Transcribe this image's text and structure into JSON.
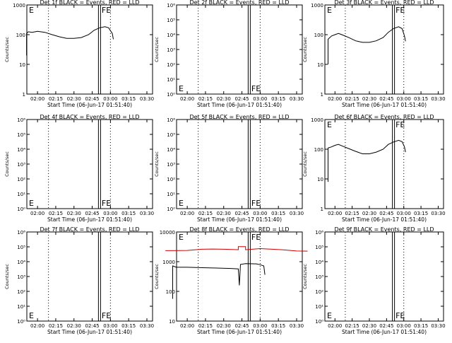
{
  "window": {
    "background": "#ffffff",
    "frame_color": "#000000",
    "event_color": "#000000",
    "lld_color": "#cc0000"
  },
  "panels_common": {
    "xlabel": "Start Time (06-Jun-17 01:51:40)",
    "ylabel": "Counts/sec",
    "xticks": [
      "02:00",
      "02:15",
      "02:30",
      "02:45",
      "03:00",
      "03:15",
      "03:30"
    ],
    "marker_E": "E",
    "marker_FE": "FE"
  },
  "chart_data": [
    {
      "type": "line",
      "title": "Det 1f BLACK = Events, RED = LLD",
      "xlabel": "Start Time (06-Jun-17 01:51:40)",
      "ylabel": "Counts/sec",
      "x_range_minutes": [
        -6,
        33
      ],
      "x_unit": "minutes after 02:00",
      "yscale": "log",
      "ylim": [
        1,
        1000
      ],
      "yticks": [
        "1000",
        "100",
        "10",
        "1"
      ],
      "dotted_x": [
        3,
        20
      ],
      "double_x": [
        17
      ],
      "labels": [
        {
          "text": "E",
          "pos": "top-left"
        },
        {
          "text": "FE",
          "pos": "top-right-of-double"
        }
      ],
      "series": [
        {
          "color": "black",
          "points": [
            [
              -3,
              20
            ],
            [
              -3,
              110
            ],
            [
              -2.5,
              125
            ],
            [
              -1.5,
              120
            ],
            [
              0,
              130
            ],
            [
              2,
              120
            ],
            [
              4,
              100
            ],
            [
              6,
              85
            ],
            [
              8,
              75
            ],
            [
              10,
              75
            ],
            [
              12,
              80
            ],
            [
              14,
              100
            ],
            [
              15.5,
              140
            ],
            [
              17,
              170
            ],
            [
              18.5,
              185
            ],
            [
              19.5,
              170
            ],
            [
              20.5,
              110
            ],
            [
              20.8,
              70
            ]
          ]
        }
      ]
    },
    {
      "type": "line",
      "title": "Det 2f BLACK = Events, RED = LLD",
      "xlabel": "Start Time (06-Jun-17 01:51:40)",
      "ylabel": "Counts/sec",
      "x_range_minutes": [
        -6,
        33
      ],
      "yscale": "log",
      "ylim": [
        1,
        1000000
      ],
      "yticks": [
        "10⁶",
        "10⁵",
        "10⁴",
        "10³",
        "10²",
        "10¹",
        "10⁰"
      ],
      "dotted_x": [
        3,
        20
      ],
      "double_x": [
        17
      ],
      "labels": [
        {
          "text": "E",
          "pos": "bottom-left"
        },
        {
          "text": "FE",
          "pos": "bottom-right-of-double"
        }
      ],
      "series": []
    },
    {
      "type": "line",
      "title": "Det 3f BLACK = Events, RED = LLD",
      "xlabel": "Start Time (06-Jun-17 01:51:40)",
      "ylabel": "Counts/sec",
      "x_range_minutes": [
        -6,
        33
      ],
      "yscale": "log",
      "ylim": [
        1,
        1000
      ],
      "yticks": [
        "1000",
        "100",
        "10",
        "1"
      ],
      "dotted_x": [
        3,
        20
      ],
      "double_x": [
        17
      ],
      "labels": [
        {
          "text": "E",
          "pos": "top-left"
        },
        {
          "text": "FE",
          "pos": "top-right-of-double"
        }
      ],
      "series": [
        {
          "color": "black",
          "points": [
            [
              -2,
              10
            ],
            [
              -2,
              70
            ],
            [
              -1,
              90
            ],
            [
              0,
              100
            ],
            [
              1,
              110
            ],
            [
              2,
              100
            ],
            [
              4,
              80
            ],
            [
              6,
              62
            ],
            [
              8,
              55
            ],
            [
              10,
              55
            ],
            [
              12,
              62
            ],
            [
              14,
              80
            ],
            [
              15.5,
              120
            ],
            [
              17,
              160
            ],
            [
              18.5,
              185
            ],
            [
              19.5,
              160
            ],
            [
              20.2,
              90
            ],
            [
              20.5,
              60
            ]
          ]
        }
      ]
    },
    {
      "type": "line",
      "title": "Det 4f BLACK = Events, RED = LLD",
      "xlabel": "Start Time (06-Jun-17 01:51:40)",
      "ylabel": "Counts/sec",
      "x_range_minutes": [
        -6,
        33
      ],
      "yscale": "log",
      "ylim": [
        1,
        1000000
      ],
      "yticks": [
        "10⁶",
        "10⁵",
        "10⁴",
        "10³",
        "10²",
        "10¹",
        "10⁰"
      ],
      "dotted_x": [
        3,
        20
      ],
      "double_x": [
        17
      ],
      "labels": [
        {
          "text": "E",
          "pos": "bottom-left"
        },
        {
          "text": "FE",
          "pos": "bottom-right-of-double"
        }
      ],
      "series": []
    },
    {
      "type": "line",
      "title": "Det 5f BLACK = Events, RED = LLD",
      "xlabel": "Start Time (06-Jun-17 01:51:40)",
      "ylabel": "Counts/sec",
      "x_range_minutes": [
        -6,
        33
      ],
      "yscale": "log",
      "ylim": [
        1,
        1000000
      ],
      "yticks": [
        "10⁶",
        "10⁵",
        "10⁴",
        "10³",
        "10²",
        "10¹",
        "10⁰"
      ],
      "dotted_x": [
        3,
        20
      ],
      "double_x": [
        17
      ],
      "labels": [
        {
          "text": "E",
          "pos": "bottom-left"
        },
        {
          "text": "FE",
          "pos": "bottom-right-of-double"
        }
      ],
      "series": []
    },
    {
      "type": "line",
      "title": "Det 6f BLACK = Events, RED = LLD",
      "xlabel": "Start Time (06-Jun-17 01:51:40)",
      "ylabel": "Counts/sec",
      "x_range_minutes": [
        -6,
        33
      ],
      "yscale": "log",
      "ylim": [
        1,
        1000
      ],
      "yticks": [
        "1000",
        "100",
        "10",
        "1"
      ],
      "dotted_x": [
        3,
        20
      ],
      "double_x": [
        17
      ],
      "labels": [
        {
          "text": "E",
          "pos": "top-left"
        },
        {
          "text": "FE",
          "pos": "top-right-of-double"
        }
      ],
      "series": [
        {
          "color": "black",
          "points": [
            [
              -2,
              8
            ],
            [
              -2,
              110
            ],
            [
              -1,
              120
            ],
            [
              0,
              135
            ],
            [
              1,
              145
            ],
            [
              2,
              130
            ],
            [
              4,
              105
            ],
            [
              6,
              85
            ],
            [
              8,
              70
            ],
            [
              10,
              70
            ],
            [
              12,
              80
            ],
            [
              14,
              100
            ],
            [
              15.5,
              145
            ],
            [
              17,
              175
            ],
            [
              18.5,
              200
            ],
            [
              19.5,
              180
            ],
            [
              20.2,
              120
            ],
            [
              20.5,
              80
            ]
          ]
        }
      ]
    },
    {
      "type": "line",
      "title": "Det 7f BLACK = Events, RED = LLD",
      "xlabel": "Start Time (06-Jun-17 01:51:40)",
      "ylabel": "Counts/sec",
      "x_range_minutes": [
        -6,
        33
      ],
      "yscale": "log",
      "ylim": [
        1,
        1000000
      ],
      "yticks": [
        "10⁶",
        "10⁵",
        "10⁴",
        "10³",
        "10²",
        "10¹",
        "10⁰"
      ],
      "dotted_x": [
        3,
        20
      ],
      "double_x": [
        17
      ],
      "labels": [
        {
          "text": "E",
          "pos": "bottom-left"
        },
        {
          "text": "FE",
          "pos": "bottom-right-of-double"
        }
      ],
      "series": []
    },
    {
      "type": "line",
      "title": "Det 8f BLACK = Events, RED = LLD",
      "xlabel": "Start Time (06-Jun-17 01:51:40)",
      "ylabel": "Counts/sec",
      "x_range_minutes": [
        -6,
        33
      ],
      "yscale": "log",
      "ylim": [
        1,
        10000
      ],
      "yticks": [
        "10000",
        "1000",
        "100",
        "10"
      ],
      "dotted_x": [
        3,
        20
      ],
      "double_x": [
        17
      ],
      "labels": [
        {
          "text": "E",
          "pos": "top-left"
        },
        {
          "text": "FE",
          "pos": "top-right-of-double"
        }
      ],
      "series": [
        {
          "color": "red",
          "points": [
            [
              -6,
              1450
            ],
            [
              0,
              1480
            ],
            [
              4,
              1680
            ],
            [
              7,
              1720
            ],
            [
              10,
              1680
            ],
            [
              13,
              1620
            ],
            [
              14,
              1600
            ],
            [
              14,
              2200
            ],
            [
              16,
              2200
            ],
            [
              16,
              1600
            ],
            [
              20,
              1800
            ],
            [
              26,
              1600
            ],
            [
              30,
              1400
            ],
            [
              33,
              1380
            ]
          ]
        },
        {
          "color": "black",
          "points": [
            [
              -4,
              10
            ],
            [
              -4,
              300
            ],
            [
              -3,
              260
            ],
            [
              0,
              260
            ],
            [
              4,
              250
            ],
            [
              8,
              240
            ],
            [
              12,
              230
            ],
            [
              14,
              220
            ],
            [
              14.3,
              40
            ],
            [
              14.6,
              350
            ],
            [
              16,
              380
            ],
            [
              19,
              370
            ],
            [
              20,
              340
            ],
            [
              21,
              300
            ],
            [
              21.3,
              120
            ]
          ]
        }
      ]
    },
    {
      "type": "line",
      "title": "Det 9f BLACK = Events, RED = LLD",
      "xlabel": "Start Time (06-Jun-17 01:51:40)",
      "ylabel": "Counts/sec",
      "x_range_minutes": [
        -6,
        33
      ],
      "yscale": "log",
      "ylim": [
        1,
        1000000
      ],
      "yticks": [
        "10⁶",
        "10⁵",
        "10⁴",
        "10³",
        "10²",
        "10¹",
        "10⁰"
      ],
      "dotted_x": [
        3,
        20
      ],
      "double_x": [
        17
      ],
      "labels": [
        {
          "text": "E",
          "pos": "bottom-left"
        },
        {
          "text": "FE",
          "pos": "bottom-right-of-double"
        }
      ],
      "series": []
    }
  ]
}
